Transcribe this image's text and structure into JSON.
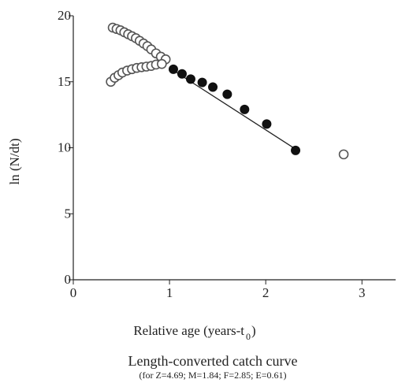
{
  "chart_data": {
    "type": "scatter",
    "title": "Length-converted catch curve",
    "subtitle": "(for Z=4.69; M=1.84; F=2.85; E=0.61)",
    "xlabel_main": "Relative age (years-t",
    "xlabel_sub": "0",
    "xlabel_end": ")",
    "ylabel": "ln (N/dt)",
    "xlim": [
      0,
      3.35
    ],
    "ylim": [
      0,
      20
    ],
    "x_ticks": [
      "0",
      "1",
      "2",
      "3"
    ],
    "y_ticks": [
      "0",
      "5",
      "10",
      "15",
      "20"
    ],
    "grid": false,
    "colors": {
      "axis": "#222222",
      "filled": "#111111",
      "open_stroke": "#555555",
      "open_fill": "#ffffff"
    },
    "series": [
      {
        "marker": "open-circle",
        "points": [
          [
            0.41,
            19.1
          ],
          [
            0.45,
            19.0
          ],
          [
            0.49,
            18.9
          ],
          [
            0.53,
            18.75
          ],
          [
            0.57,
            18.6
          ],
          [
            0.61,
            18.45
          ],
          [
            0.65,
            18.3
          ],
          [
            0.69,
            18.1
          ],
          [
            0.73,
            17.9
          ],
          [
            0.77,
            17.7
          ],
          [
            0.81,
            17.45
          ],
          [
            0.86,
            17.15
          ],
          [
            0.91,
            16.9
          ],
          [
            0.96,
            16.7
          ],
          [
            0.39,
            15.0
          ],
          [
            0.43,
            15.3
          ],
          [
            0.47,
            15.5
          ],
          [
            0.51,
            15.7
          ],
          [
            0.56,
            15.85
          ],
          [
            0.61,
            15.95
          ],
          [
            0.66,
            16.05
          ],
          [
            0.71,
            16.1
          ],
          [
            0.76,
            16.15
          ],
          [
            0.81,
            16.2
          ],
          [
            0.86,
            16.3
          ],
          [
            0.92,
            16.35
          ],
          [
            2.81,
            9.5
          ]
        ]
      },
      {
        "marker": "filled-circle",
        "points": [
          [
            1.04,
            15.95
          ],
          [
            1.13,
            15.6
          ],
          [
            1.22,
            15.2
          ],
          [
            1.34,
            14.95
          ],
          [
            1.45,
            14.6
          ],
          [
            1.6,
            14.05
          ],
          [
            1.78,
            12.9
          ],
          [
            2.01,
            11.8
          ],
          [
            2.31,
            9.8
          ]
        ]
      }
    ],
    "regression_line": {
      "x": [
        1.0,
        2.31
      ],
      "y": [
        16.05,
        9.9
      ]
    }
  }
}
